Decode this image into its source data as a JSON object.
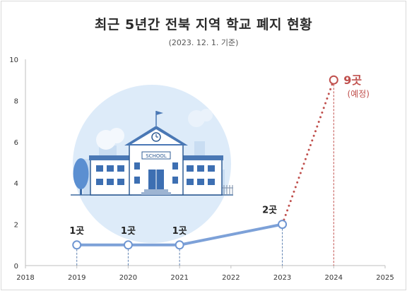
{
  "title": "최근 5년간 전북 지역 학교 폐지 현황",
  "subtitle": "(2023. 12. 1. 기준)",
  "school_sign": "SCHOOL",
  "chart_data": {
    "type": "line",
    "title": "최근 5년간 전북 지역 학교 폐지 현황",
    "subtitle": "(2023. 12. 1. 기준)",
    "x_ticks": [
      2018,
      2019,
      2020,
      2021,
      2022,
      2023,
      2024,
      2025
    ],
    "y_ticks": [
      0,
      2,
      4,
      6,
      8,
      10
    ],
    "xlim": [
      2018,
      2025
    ],
    "ylim": [
      0,
      10
    ],
    "series": [
      {
        "x": [
          2019,
          2020,
          2021,
          2023
        ],
        "y": [
          1,
          1,
          1,
          2
        ],
        "labels": [
          "1곳",
          "1곳",
          "1곳",
          "2곳"
        ],
        "style": "solid",
        "color": "#7da1d8"
      },
      {
        "x": [
          2023,
          2024
        ],
        "y": [
          2,
          9
        ],
        "labels": [
          "",
          "9곳"
        ],
        "style": "dotted",
        "color": "#c0504d"
      }
    ],
    "annotations": [
      {
        "x": 2024,
        "y": 9,
        "text": "(예정)"
      }
    ],
    "grid": false
  }
}
